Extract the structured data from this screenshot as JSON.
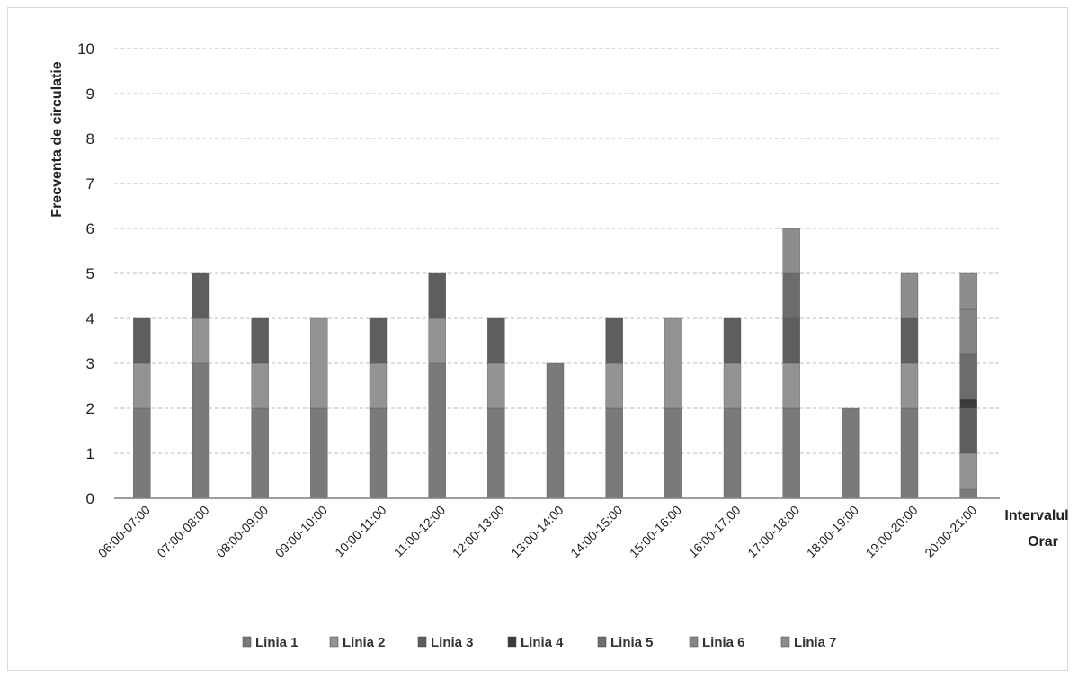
{
  "chart_data": {
    "type": "bar",
    "stacked": true,
    "title": "",
    "ylabel": "Frecventa de circulatie",
    "xlabel_lines": [
      "Intervalul",
      "Orar"
    ],
    "ylim": [
      0,
      10
    ],
    "yticks": [
      0,
      1,
      2,
      3,
      4,
      5,
      6,
      7,
      8,
      9,
      10
    ],
    "grid": true,
    "legend_position": "bottom",
    "categories": [
      "06:00-07:00",
      "07:00-08:00",
      "08:00-09:00",
      "09:00-10:00",
      "10:00-11:00",
      "11:00-12:00",
      "12:00-13:00",
      "13:00-14:00",
      "14:00-15:00",
      "15:00-16:00",
      "16:00-17:00",
      "17:00-18:00",
      "18:00-19:00",
      "19:00-20:00",
      "20:00-21:00"
    ],
    "series": [
      {
        "name": "Linia 1",
        "color": "#7a7a7a",
        "values": [
          2,
          3,
          2,
          2,
          2,
          3,
          2,
          3,
          2,
          2,
          2,
          2,
          2,
          2,
          0.2
        ]
      },
      {
        "name": "Linia 2",
        "color": "#939393",
        "values": [
          1,
          1,
          1,
          2,
          1,
          1,
          1,
          0,
          1,
          2,
          1,
          1,
          0,
          1,
          0.8
        ]
      },
      {
        "name": "Linia 3",
        "color": "#5e5e5e",
        "values": [
          1,
          1,
          1,
          0,
          1,
          1,
          1,
          0,
          1,
          0,
          1,
          1,
          0,
          1,
          1
        ]
      },
      {
        "name": "Linia 4",
        "color": "#3b3b3b",
        "values": [
          0,
          0,
          0,
          0,
          0,
          0,
          0,
          0,
          0,
          0,
          0,
          0,
          0,
          0,
          0.2
        ]
      },
      {
        "name": "Linia 5",
        "color": "#6c6c6c",
        "values": [
          0,
          0,
          0,
          0,
          0,
          0,
          0,
          0,
          0,
          0,
          0,
          1,
          0,
          0,
          1
        ]
      },
      {
        "name": "Linia 6",
        "color": "#858585",
        "values": [
          0,
          0,
          0,
          0,
          0,
          0,
          0,
          0,
          0,
          0,
          0,
          0,
          0,
          0,
          1
        ]
      },
      {
        "name": "Linia 7",
        "color": "#8d8d8d",
        "values": [
          0,
          0,
          0,
          0,
          0,
          0,
          0,
          0,
          0,
          0,
          0,
          1,
          0,
          1,
          0.8
        ]
      }
    ]
  }
}
